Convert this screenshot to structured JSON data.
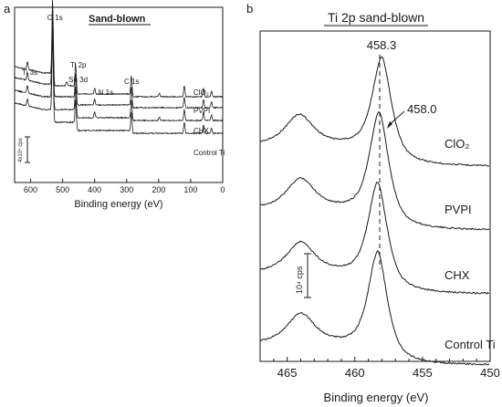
{
  "panel_labels": {
    "a": "a",
    "b": "b"
  },
  "chart_data": [
    {
      "type": "line",
      "panel": "a",
      "title": "Sand-blown",
      "xlabel": "Binding energy (eV)",
      "xlim": [
        650,
        0
      ],
      "x_reversed": true,
      "xticks": [
        600,
        500,
        400,
        300,
        200,
        100,
        0
      ],
      "scale_bar_label": "4x10⁴ cps",
      "series_labels": [
        "ClO₂",
        "PVPI",
        "CHX",
        "Control Ti"
      ],
      "peak_labels": [
        {
          "text": "O 1s",
          "x": 531
        },
        {
          "text": "Ti 2p",
          "x": 459
        },
        {
          "text": "Sn 3d",
          "x": 487
        },
        {
          "text": "Ti 3s",
          "x": 610
        },
        {
          "text": "N 1s",
          "x": 400
        },
        {
          "text": "C 1s",
          "x": 285
        }
      ],
      "series": [
        {
          "name": "ClO₂",
          "peaks_eV": [
            610,
            531,
            487,
            459,
            400,
            285,
            198,
            120,
            60,
            35
          ]
        },
        {
          "name": "PVPI",
          "peaks_eV": [
            610,
            531,
            459,
            400,
            285,
            120,
            60,
            35
          ]
        },
        {
          "name": "CHX",
          "peaks_eV": [
            610,
            531,
            459,
            400,
            285,
            198,
            120,
            60,
            35
          ]
        },
        {
          "name": "Control Ti",
          "peaks_eV": [
            610,
            531,
            459,
            285,
            120,
            60,
            35
          ]
        }
      ]
    },
    {
      "type": "line",
      "panel": "b",
      "title": "Ti 2p sand-blown",
      "xlabel": "Binding energy (eV)",
      "xlim": [
        467,
        450
      ],
      "x_reversed": true,
      "xticks": [
        465,
        460,
        455,
        450
      ],
      "scale_bar_label": "10⁴ cps",
      "annotations": [
        {
          "text": "458.3",
          "x": 458.3
        },
        {
          "text": "458.0",
          "x": 458.0
        }
      ],
      "series": [
        {
          "name": "ClO₂",
          "peaks_eV": [
            464.1,
            458.0
          ]
        },
        {
          "name": "PVPI",
          "peaks_eV": [
            464.0,
            458.2
          ]
        },
        {
          "name": "CHX",
          "peaks_eV": [
            464.0,
            458.3
          ]
        },
        {
          "name": "Control Ti",
          "peaks_eV": [
            464.0,
            458.3
          ]
        }
      ]
    }
  ]
}
